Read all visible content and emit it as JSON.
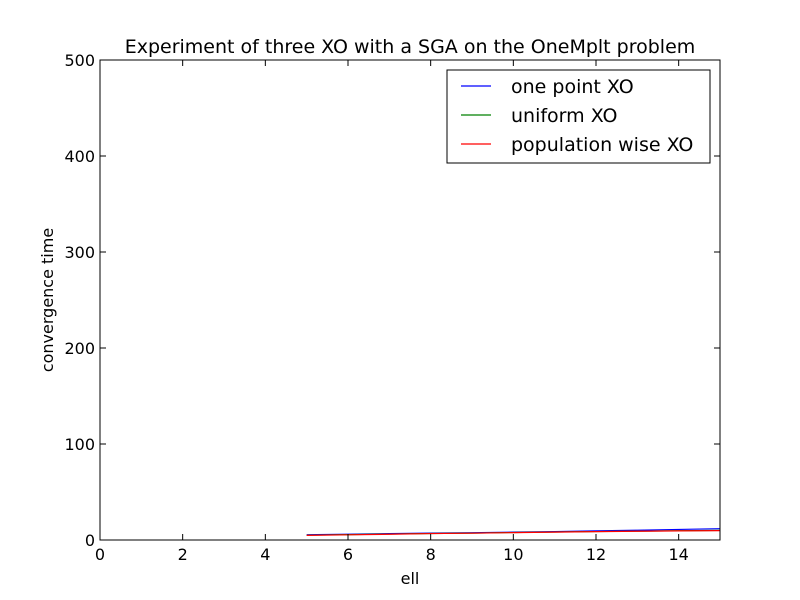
{
  "chart_data": {
    "type": "line",
    "title": "Experiment of three XO with a SGA on the OneMplt problem",
    "xlabel": "ell",
    "ylabel": "convergence time",
    "xlim": [
      0,
      15
    ],
    "ylim": [
      0,
      500
    ],
    "xticks": [
      0,
      2,
      4,
      6,
      8,
      10,
      12,
      14
    ],
    "yticks": [
      0,
      100,
      200,
      300,
      400,
      500
    ],
    "grid": false,
    "legend_position": "top-right",
    "x": [
      5,
      6,
      7,
      8,
      9,
      10,
      11,
      12,
      13,
      14,
      15
    ],
    "series": [
      {
        "name": "one point XO",
        "color": "#0000ff",
        "values": [
          5.5,
          6.0,
          6.6,
          7.2,
          7.6,
          8.2,
          8.8,
          9.5,
          10.2,
          11.0,
          11.8
        ]
      },
      {
        "name": "uniform XO",
        "color": "#008000",
        "values": [
          5.0,
          5.6,
          6.2,
          6.8,
          7.2,
          7.8,
          8.3,
          8.8,
          9.2,
          9.6,
          10.0
        ]
      },
      {
        "name": "population wise XO",
        "color": "#ff0000",
        "values": [
          4.8,
          5.4,
          6.0,
          6.7,
          7.1,
          7.7,
          8.2,
          8.7,
          9.1,
          9.5,
          9.8
        ]
      }
    ]
  }
}
